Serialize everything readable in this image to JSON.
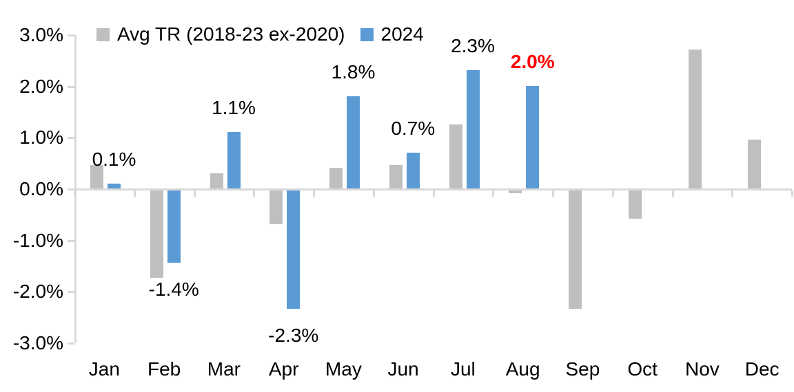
{
  "legend": {
    "items": [
      {
        "label": "Avg TR (2018-23 ex-2020)",
        "swatch_color": "#BFBFBF"
      },
      {
        "label": "2024",
        "swatch_color": "#5B9BD5"
      }
    ]
  },
  "chart_data": {
    "type": "bar",
    "title": "",
    "xlabel": "",
    "ylabel": "",
    "categories": [
      "Jan",
      "Feb",
      "Mar",
      "Apr",
      "May",
      "Jun",
      "Jul",
      "Aug",
      "Sep",
      "Oct",
      "Nov",
      "Dec"
    ],
    "series": [
      {
        "name": "Avg TR (2018-23 ex-2020)",
        "color": "#BFBFBF",
        "values": [
          0.45,
          -1.7,
          0.3,
          -0.65,
          0.4,
          0.45,
          1.25,
          -0.05,
          -2.3,
          -0.55,
          2.7,
          0.95
        ]
      },
      {
        "name": "2024",
        "color": "#5B9BD5",
        "values": [
          0.1,
          -1.4,
          1.1,
          -2.3,
          1.8,
          0.7,
          2.3,
          2.0,
          null,
          null,
          null,
          null
        ],
        "data_labels": [
          "0.1%",
          "-1.4%",
          "1.1%",
          "-2.3%",
          "1.8%",
          "0.7%",
          "2.3%",
          "2.0%",
          null,
          null,
          null,
          null
        ]
      }
    ],
    "highlight": {
      "month": "Aug",
      "index": 7,
      "label": "2.0%",
      "color": "#FF0000",
      "bold": true
    },
    "y_ticks": [
      "3.0%",
      "2.0%",
      "1.0%",
      "0.0%",
      "-1.0%",
      "-2.0%",
      "-3.0%"
    ],
    "ylim": [
      -3.0,
      3.0
    ],
    "grid": false,
    "legend_position": "top",
    "axis_color": "#D9D9D9",
    "label_color": "#000000"
  }
}
